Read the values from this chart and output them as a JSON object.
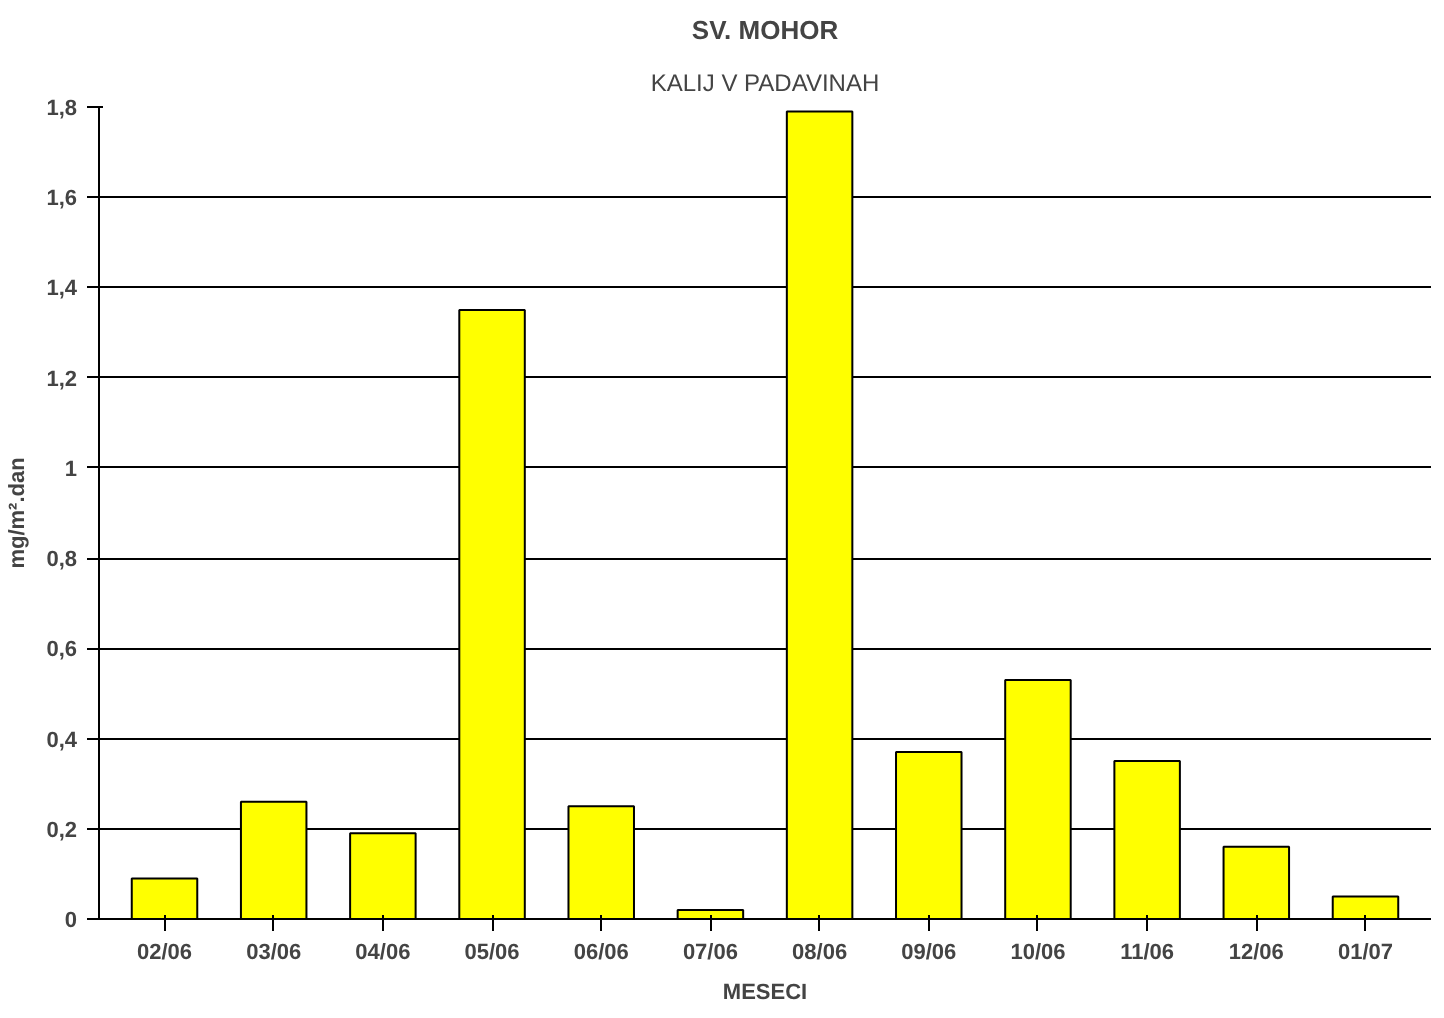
{
  "chart_data": {
    "type": "bar",
    "title": "SV. MOHOR",
    "subtitle": "KALIJ V PADAVINAH",
    "xlabel": "MESECI",
    "ylabel": "mg/m².dan",
    "categories": [
      "02/06",
      "03/06",
      "04/06",
      "05/06",
      "06/06",
      "07/06",
      "08/06",
      "09/06",
      "10/06",
      "11/06",
      "12/06",
      "01/07"
    ],
    "values": [
      0.09,
      0.26,
      0.19,
      1.35,
      0.25,
      0.02,
      1.79,
      0.37,
      0.53,
      0.35,
      0.16,
      0.05
    ],
    "color": "#ffff00",
    "ylim": [
      0,
      1.8
    ],
    "yticks": [
      0,
      {
        "value": 0.2,
        "label": "0,2"
      },
      {
        "value": 0.4,
        "label": "0,4"
      },
      {
        "value": 0.6,
        "label": "0,6"
      },
      {
        "value": 0.8,
        "label": "0,8"
      },
      1,
      {
        "value": 1.2,
        "label": "1,2"
      },
      {
        "value": 1.4,
        "label": "1,4"
      },
      {
        "value": 1.6,
        "label": "1,6"
      },
      {
        "value": 1.8,
        "label": "1,8"
      }
    ],
    "grid": "y"
  }
}
